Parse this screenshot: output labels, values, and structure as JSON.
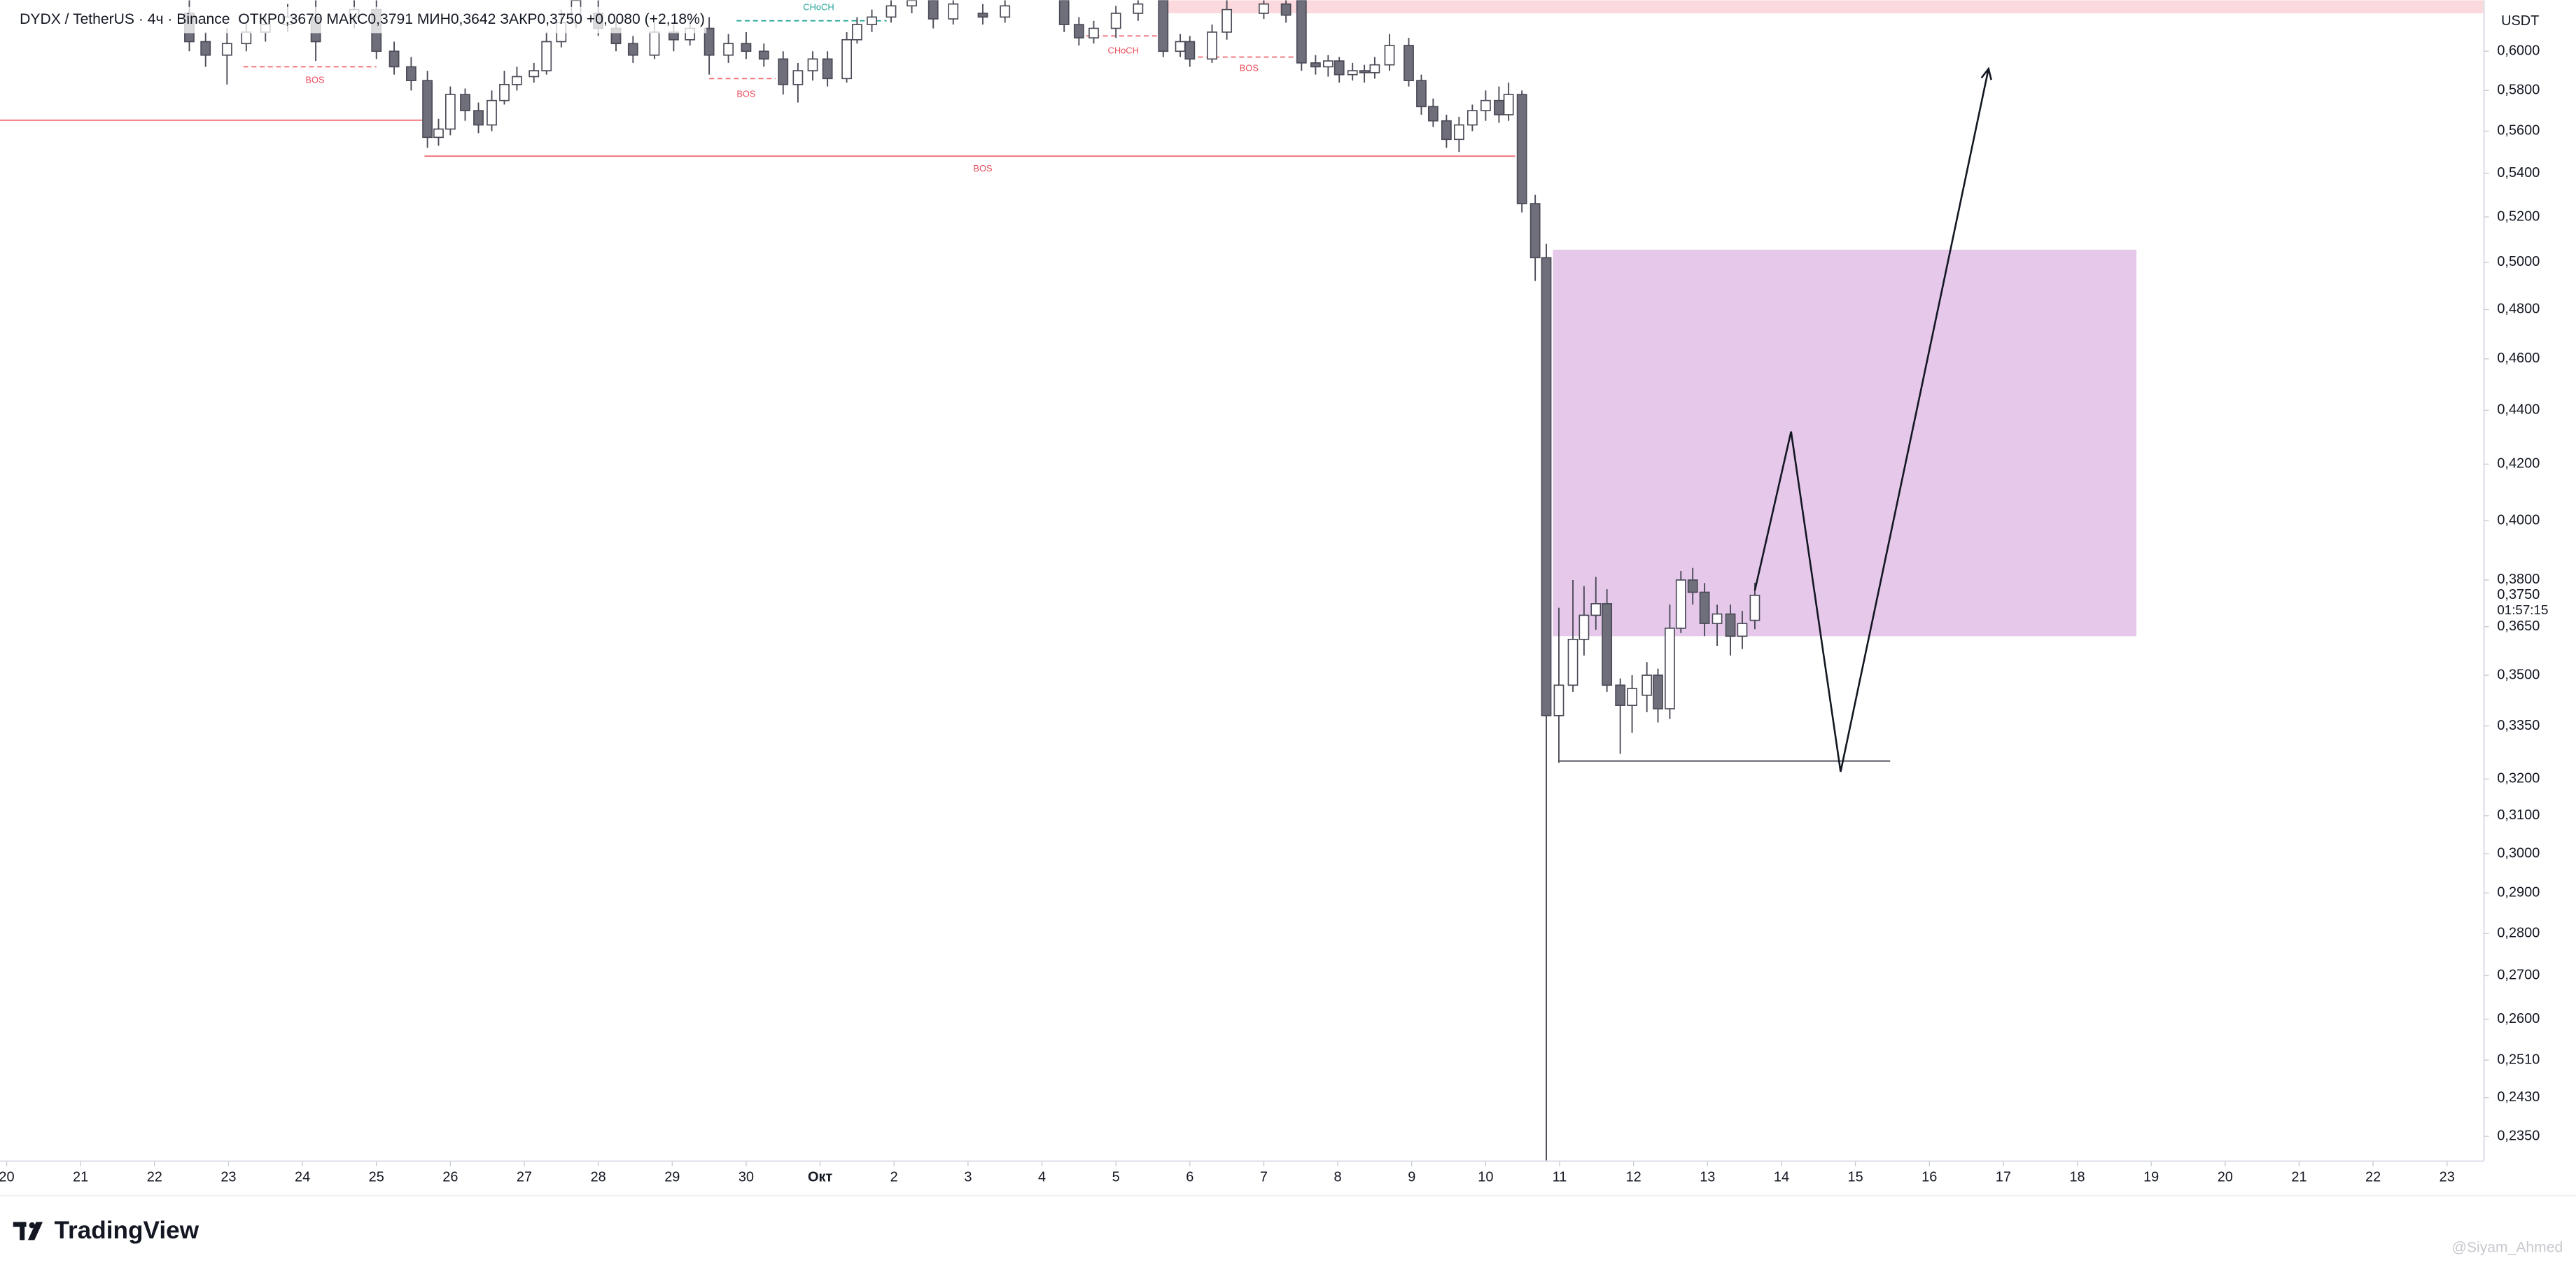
{
  "chart_data": {
    "type": "candlestick",
    "title": "DYDX / TetherUS · 4ч · Binance",
    "subtitle": "ОТКР0,3670 МАКС0,3791 МИН0,3642 ЗАКР0,3750 +0,0080 (+2,18%)",
    "y_unit": "USDT",
    "log_scale": true,
    "grid": false,
    "up_color": "#ffffff",
    "down_color": "#6f6f7b",
    "border_color": "#4a4a57",
    "xlim": [
      -0.09,
      33.5
    ],
    "ylim": [
      0.23,
      0.627
    ],
    "xticks": [
      {
        "value": 0,
        "label": "20"
      },
      {
        "value": 1,
        "label": "21"
      },
      {
        "value": 2,
        "label": "22"
      },
      {
        "value": 3,
        "label": "23"
      },
      {
        "value": 4,
        "label": "24"
      },
      {
        "value": 5,
        "label": "25"
      },
      {
        "value": 6,
        "label": "26"
      },
      {
        "value": 7,
        "label": "27"
      },
      {
        "value": 8,
        "label": "28"
      },
      {
        "value": 9,
        "label": "29"
      },
      {
        "value": 10,
        "label": "30"
      },
      {
        "value": 11,
        "label": "Окт"
      },
      {
        "value": 12,
        "label": "2"
      },
      {
        "value": 13,
        "label": "3"
      },
      {
        "value": 14,
        "label": "4"
      },
      {
        "value": 15,
        "label": "5"
      },
      {
        "value": 16,
        "label": "6"
      },
      {
        "value": 17,
        "label": "7"
      },
      {
        "value": 18,
        "label": "8"
      },
      {
        "value": 19,
        "label": "9"
      },
      {
        "value": 20,
        "label": "10"
      },
      {
        "value": 21,
        "label": "11"
      },
      {
        "value": 22,
        "label": "12"
      },
      {
        "value": 23,
        "label": "13"
      },
      {
        "value": 24,
        "label": "14"
      },
      {
        "value": 25,
        "label": "15"
      },
      {
        "value": 26,
        "label": "16"
      },
      {
        "value": 27,
        "label": "17"
      },
      {
        "value": 28,
        "label": "18"
      },
      {
        "value": 29,
        "label": "19"
      },
      {
        "value": 30,
        "label": "20"
      },
      {
        "value": 31,
        "label": "21"
      },
      {
        "value": 32,
        "label": "22"
      },
      {
        "value": 33,
        "label": "23"
      }
    ],
    "yticks": [
      {
        "value": 0.6,
        "label": "0,6000"
      },
      {
        "value": 0.58,
        "label": "0,5800"
      },
      {
        "value": 0.56,
        "label": "0,5600"
      },
      {
        "value": 0.54,
        "label": "0,5400"
      },
      {
        "value": 0.52,
        "label": "0,5200"
      },
      {
        "value": 0.5,
        "label": "0,5000"
      },
      {
        "value": 0.48,
        "label": "0,4800"
      },
      {
        "value": 0.46,
        "label": "0,4600"
      },
      {
        "value": 0.44,
        "label": "0,4400"
      },
      {
        "value": 0.42,
        "label": "0,4200"
      },
      {
        "value": 0.4,
        "label": "0,4000"
      },
      {
        "value": 0.38,
        "label": "0,3800"
      },
      {
        "value": 0.365,
        "label": "0,3650"
      },
      {
        "value": 0.35,
        "label": "0,3500"
      },
      {
        "value": 0.335,
        "label": "0,3350"
      },
      {
        "value": 0.32,
        "label": "0,3200"
      },
      {
        "value": 0.31,
        "label": "0,3100"
      },
      {
        "value": 0.3,
        "label": "0,3000"
      },
      {
        "value": 0.29,
        "label": "0,2900"
      },
      {
        "value": 0.28,
        "label": "0,2800"
      },
      {
        "value": 0.27,
        "label": "0,2700"
      },
      {
        "value": 0.26,
        "label": "0,2600"
      },
      {
        "value": 0.251,
        "label": "0,2510"
      },
      {
        "value": 0.243,
        "label": "0,2430"
      },
      {
        "value": 0.235,
        "label": "0,2350"
      }
    ],
    "last_price": {
      "value": 0.375,
      "label": "0,3750"
    },
    "countdown": "01:57:15",
    "x": [
      2.47,
      2.69,
      2.98,
      3.24,
      3.5,
      3.8,
      4.18,
      4.7,
      5.0,
      5.24,
      5.47,
      5.69,
      5.84,
      6.0,
      6.2,
      6.38,
      6.56,
      6.73,
      6.9,
      7.13,
      7.3,
      7.5,
      7.7,
      8.0,
      8.24,
      8.47,
      8.76,
      9.02,
      9.24,
      9.5,
      9.76,
      10.0,
      10.24,
      10.5,
      10.7,
      10.9,
      11.1,
      11.36,
      11.5,
      11.7,
      11.96,
      12.24,
      12.53,
      12.8,
      13.2,
      13.5,
      14.3,
      14.5,
      14.7,
      15.0,
      15.3,
      15.64,
      15.87,
      16.0,
      16.3,
      16.5,
      17.0,
      17.3,
      17.51,
      17.7,
      17.87,
      18.02,
      18.2,
      18.36,
      18.5,
      18.7,
      18.96,
      19.13,
      19.29,
      19.47,
      19.64,
      19.82,
      20.0,
      20.18,
      20.31,
      20.49,
      20.67,
      20.82,
      20.99,
      21.18,
      21.33,
      21.49,
      21.64,
      21.82,
      21.98,
      22.18,
      22.33,
      22.49,
      22.64,
      22.8,
      22.96,
      23.13,
      23.31,
      23.47,
      23.64
    ],
    "open": [
      0.62,
      0.605,
      0.598,
      0.604,
      0.61,
      0.614,
      0.618,
      0.618,
      0.622,
      0.6,
      0.592,
      0.585,
      0.557,
      0.561,
      0.578,
      0.57,
      0.563,
      0.575,
      0.583,
      0.587,
      0.59,
      0.605,
      0.615,
      0.62,
      0.612,
      0.604,
      0.598,
      0.61,
      0.606,
      0.612,
      0.598,
      0.604,
      0.6,
      0.596,
      0.583,
      0.59,
      0.596,
      0.586,
      0.606,
      0.614,
      0.618,
      0.624,
      0.627,
      0.617,
      0.62,
      0.618,
      0.627,
      0.614,
      0.607,
      0.612,
      0.62,
      0.627,
      0.6,
      0.605,
      0.596,
      0.61,
      0.62,
      0.625,
      0.627,
      0.594,
      0.592,
      0.595,
      0.588,
      0.59,
      0.589,
      0.593,
      0.603,
      0.585,
      0.572,
      0.565,
      0.556,
      0.563,
      0.57,
      0.575,
      0.568,
      0.578,
      0.526,
      0.502,
      0.338,
      0.347,
      0.361,
      0.3686,
      0.3723,
      0.347,
      0.341,
      0.344,
      0.35,
      0.34,
      0.3645,
      0.38,
      0.376,
      0.366,
      0.369,
      0.362,
      0.367
    ],
    "high": [
      0.627,
      0.61,
      0.612,
      0.615,
      0.62,
      0.625,
      0.627,
      0.627,
      0.627,
      0.605,
      0.597,
      0.59,
      0.566,
      0.582,
      0.581,
      0.574,
      0.58,
      0.59,
      0.592,
      0.594,
      0.61,
      0.622,
      0.627,
      0.627,
      0.616,
      0.608,
      0.615,
      0.614,
      0.617,
      0.618,
      0.609,
      0.61,
      0.604,
      0.6,
      0.594,
      0.6,
      0.6,
      0.61,
      0.618,
      0.622,
      0.627,
      0.627,
      0.627,
      0.627,
      0.625,
      0.627,
      0.627,
      0.618,
      0.616,
      0.624,
      0.627,
      0.627,
      0.609,
      0.608,
      0.614,
      0.627,
      0.627,
      0.627,
      0.627,
      0.598,
      0.598,
      0.597,
      0.594,
      0.593,
      0.597,
      0.609,
      0.607,
      0.588,
      0.576,
      0.568,
      0.567,
      0.573,
      0.58,
      0.582,
      0.584,
      0.58,
      0.53,
      0.508,
      0.371,
      0.38,
      0.378,
      0.381,
      0.377,
      0.349,
      0.35,
      0.354,
      0.352,
      0.372,
      0.383,
      0.384,
      0.379,
      0.372,
      0.372,
      0.37,
      0.3791
    ],
    "low": [
      0.6,
      0.592,
      0.583,
      0.6,
      0.605,
      0.61,
      0.595,
      0.612,
      0.596,
      0.588,
      0.58,
      0.552,
      0.553,
      0.558,
      0.565,
      0.559,
      0.56,
      0.573,
      0.58,
      0.584,
      0.588,
      0.602,
      0.612,
      0.608,
      0.6,
      0.594,
      0.596,
      0.6,
      0.603,
      0.588,
      0.594,
      0.596,
      0.592,
      0.578,
      0.574,
      0.585,
      0.582,
      0.584,
      0.604,
      0.61,
      0.615,
      0.62,
      0.612,
      0.614,
      0.614,
      0.615,
      0.61,
      0.603,
      0.604,
      0.607,
      0.616,
      0.597,
      0.597,
      0.592,
      0.594,
      0.606,
      0.617,
      0.615,
      0.59,
      0.588,
      0.587,
      0.584,
      0.585,
      0.584,
      0.586,
      0.59,
      0.582,
      0.568,
      0.562,
      0.552,
      0.55,
      0.56,
      0.565,
      0.564,
      0.565,
      0.522,
      0.492,
      0.23,
      0.3245,
      0.345,
      0.356,
      0.364,
      0.345,
      0.327,
      0.333,
      0.339,
      0.336,
      0.337,
      0.363,
      0.372,
      0.362,
      0.359,
      0.356,
      0.358,
      0.3642
    ],
    "close": [
      0.605,
      0.598,
      0.604,
      0.61,
      0.614,
      0.618,
      0.605,
      0.622,
      0.6,
      0.592,
      0.585,
      0.557,
      0.561,
      0.578,
      0.57,
      0.563,
      0.575,
      0.583,
      0.587,
      0.59,
      0.605,
      0.615,
      0.627,
      0.612,
      0.604,
      0.598,
      0.61,
      0.606,
      0.612,
      0.598,
      0.604,
      0.6,
      0.596,
      0.583,
      0.59,
      0.596,
      0.586,
      0.606,
      0.614,
      0.618,
      0.624,
      0.627,
      0.617,
      0.625,
      0.618,
      0.624,
      0.614,
      0.607,
      0.612,
      0.62,
      0.625,
      0.6,
      0.605,
      0.596,
      0.61,
      0.622,
      0.625,
      0.619,
      0.594,
      0.592,
      0.595,
      0.588,
      0.59,
      0.589,
      0.593,
      0.603,
      0.585,
      0.572,
      0.565,
      0.556,
      0.563,
      0.57,
      0.575,
      0.568,
      0.578,
      0.526,
      0.502,
      0.338,
      0.347,
      0.361,
      0.3686,
      0.3723,
      0.347,
      0.341,
      0.346,
      0.35,
      0.34,
      0.3645,
      0.38,
      0.376,
      0.366,
      0.369,
      0.362,
      0.366,
      0.375
    ],
    "zones": [
      {
        "x": [
          15.64,
          33.5
        ],
        "y": [
          0.62,
          0.627
        ],
        "color": "#fbd9dc"
      },
      {
        "x": [
          20.91,
          28.8
        ],
        "y": [
          0.362,
          0.5055
        ],
        "color": "#e5c8ea"
      }
    ],
    "levels": [
      {
        "price": 0.5653,
        "x": [
          -0.09,
          5.65
        ],
        "color": "#f0707a",
        "dashed": false
      },
      {
        "price": 0.548,
        "x": [
          5.65,
          20.4
        ],
        "color": "#f0707a",
        "dashed": false
      },
      {
        "price": 0.592,
        "x": [
          3.2,
          5.0
        ],
        "color": "#f0707a",
        "dashed": true
      },
      {
        "price": 0.586,
        "x": [
          9.5,
          10.4
        ],
        "color": "#f0707a",
        "dashed": true
      },
      {
        "price": 0.616,
        "x": [
          9.87,
          11.9
        ],
        "color": "#26a69a",
        "dashed": true
      },
      {
        "price": 0.608,
        "x": [
          14.6,
          15.6
        ],
        "color": "#f0707a",
        "dashed": true
      },
      {
        "price": 0.597,
        "x": [
          16.0,
          17.5
        ],
        "color": "#f0707a",
        "dashed": true
      },
      {
        "price": 0.325,
        "x": [
          21.0,
          25.47
        ],
        "color": "#4a4a57",
        "dashed": false
      }
    ],
    "labels": [
      {
        "text": "BOS",
        "x": 13.2,
        "price": 0.542,
        "color": "#e84d5b"
      },
      {
        "text": "BOS",
        "x": 4.17,
        "price": 0.585,
        "color": "#e84d5b"
      },
      {
        "text": "BOS",
        "x": 10.0,
        "price": 0.578,
        "color": "#e84d5b"
      },
      {
        "text": "CHoCH",
        "x": 10.98,
        "price": 0.623,
        "color": "#26a69a"
      },
      {
        "text": "CHoCH",
        "x": 15.1,
        "price": 0.6,
        "color": "#e84d5b"
      },
      {
        "text": "BOS",
        "x": 16.8,
        "price": 0.591,
        "color": "#e84d5b"
      }
    ],
    "projection": {
      "x": [
        23.64,
        24.13,
        24.8,
        26.8
      ],
      "y": [
        0.3766,
        0.432,
        0.322,
        0.591
      ],
      "color": "#131722"
    }
  },
  "footer": {
    "logo": "TradingView",
    "watermark": "@Siyam_Ahmed"
  }
}
